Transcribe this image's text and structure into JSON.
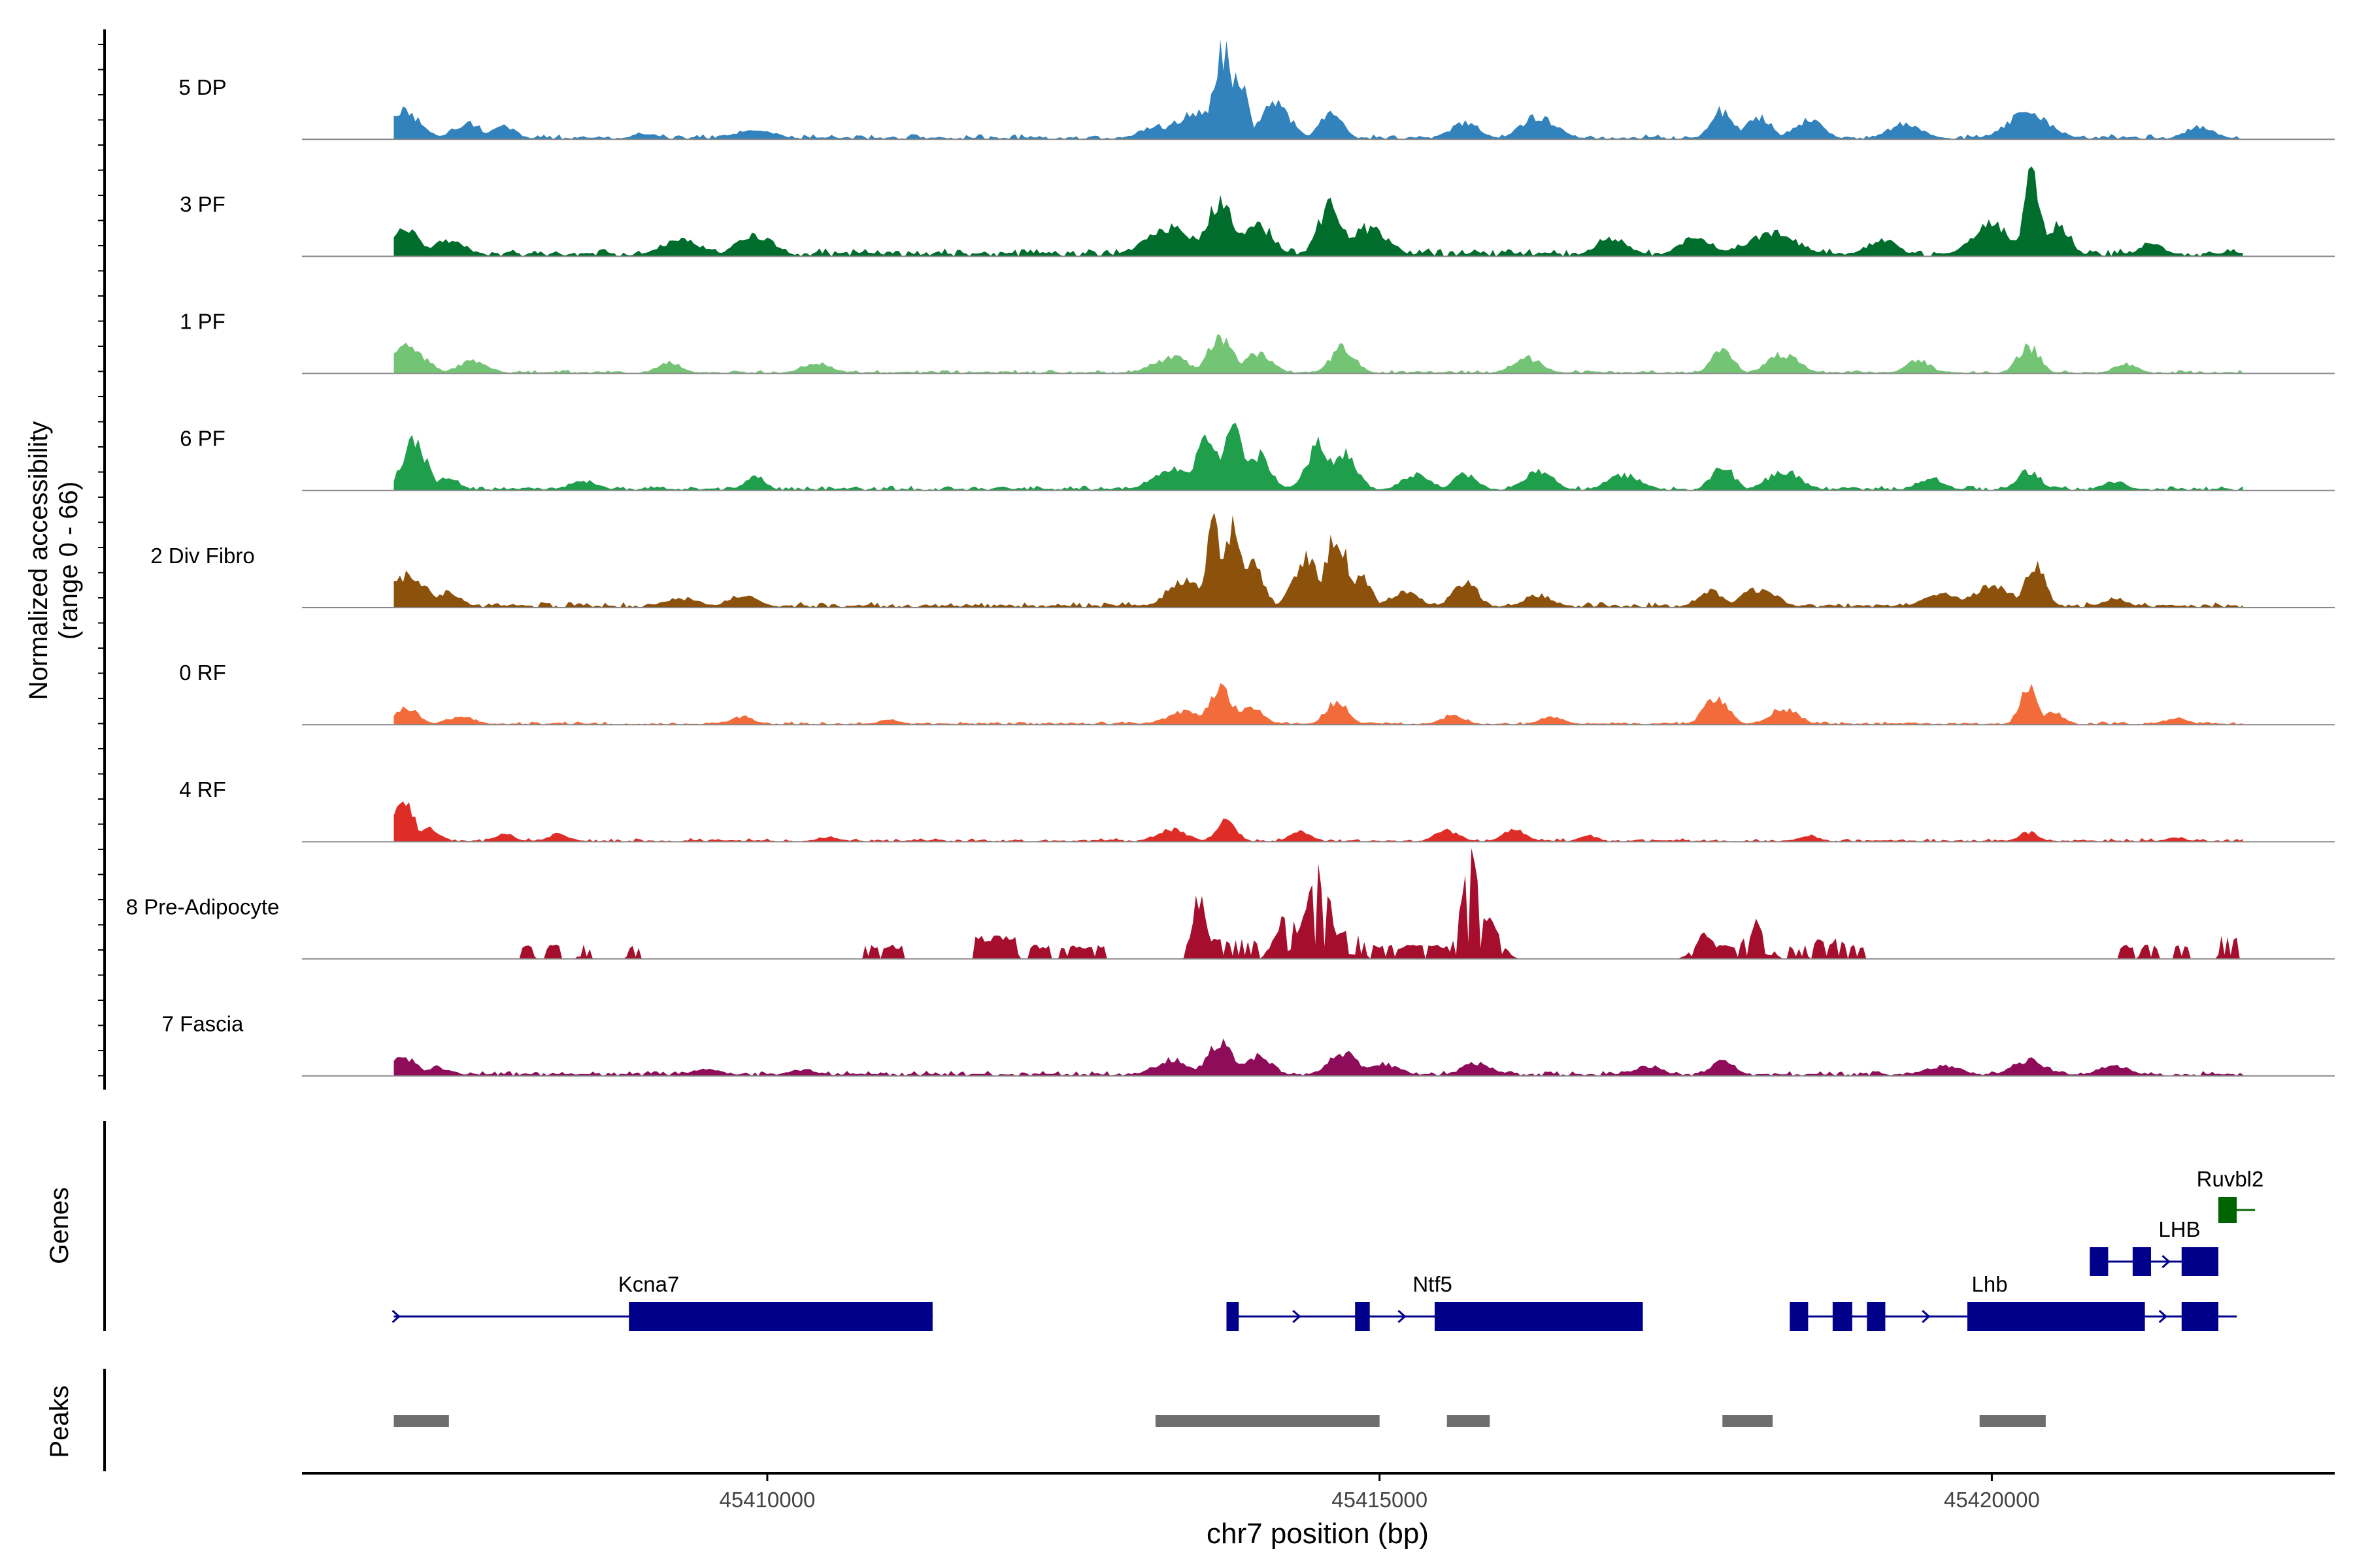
{
  "chart_data": {
    "type": "area",
    "title": "",
    "ylabel_lines": [
      "Normalized accessibility",
      "(range 0 - 66)"
    ],
    "xlabel": "chr7 position (bp)",
    "xlim": [
      45406200,
      45422800
    ],
    "x_ticks": [
      45410000,
      45415000,
      45420000
    ],
    "x_tick_labels": [
      "45410000",
      "45415000",
      "45420000"
    ],
    "data_x_range": [
      45406950,
      45422050
    ],
    "y_max": 66,
    "tracks": [
      {
        "name": "5 DP",
        "color": "#3182BD",
        "noise": 2.2,
        "floor": 0.8,
        "peaks": [
          [
            45407020,
            150,
            18
          ],
          [
            45407550,
            120,
            10
          ],
          [
            45407850,
            100,
            8
          ],
          [
            45409000,
            100,
            4
          ],
          [
            45409900,
            160,
            6
          ],
          [
            45413200,
            150,
            8
          ],
          [
            45413500,
            180,
            16
          ],
          [
            45413730,
            90,
            55
          ],
          [
            45413850,
            70,
            38
          ],
          [
            45414150,
            120,
            22
          ],
          [
            45414600,
            90,
            18
          ],
          [
            45415700,
            120,
            10
          ],
          [
            45416300,
            140,
            14
          ],
          [
            45417800,
            90,
            18
          ],
          [
            45418100,
            100,
            14
          ],
          [
            45418500,
            120,
            12
          ],
          [
            45419300,
            140,
            10
          ],
          [
            45420300,
            180,
            16
          ],
          [
            45421700,
            120,
            8
          ]
        ]
      },
      {
        "name": "3 PF",
        "color": "#006D2C",
        "noise": 3.2,
        "floor": 1.5,
        "peaks": [
          [
            45407050,
            120,
            18
          ],
          [
            45407400,
            140,
            10
          ],
          [
            45409300,
            180,
            10
          ],
          [
            45409900,
            140,
            14
          ],
          [
            45413300,
            200,
            18
          ],
          [
            45413700,
            120,
            32
          ],
          [
            45414000,
            130,
            20
          ],
          [
            45414600,
            100,
            32
          ],
          [
            45414900,
            160,
            18
          ],
          [
            45416900,
            130,
            12
          ],
          [
            45417600,
            140,
            12
          ],
          [
            45418200,
            220,
            14
          ],
          [
            45419100,
            130,
            10
          ],
          [
            45420000,
            160,
            20
          ],
          [
            45420330,
            70,
            50
          ],
          [
            45420550,
            90,
            20
          ],
          [
            45421300,
            100,
            8
          ]
        ]
      },
      {
        "name": "1 PF",
        "color": "#74C476",
        "noise": 1.5,
        "floor": 0.6,
        "peaks": [
          [
            45407050,
            150,
            16
          ],
          [
            45407600,
            120,
            8
          ],
          [
            45409200,
            100,
            7
          ],
          [
            45410400,
            120,
            7
          ],
          [
            45413300,
            150,
            10
          ],
          [
            45413700,
            100,
            22
          ],
          [
            45414000,
            120,
            12
          ],
          [
            45414700,
            100,
            16
          ],
          [
            45416200,
            120,
            10
          ],
          [
            45417800,
            90,
            14
          ],
          [
            45418300,
            130,
            12
          ],
          [
            45419400,
            100,
            8
          ],
          [
            45420300,
            90,
            17
          ],
          [
            45421100,
            100,
            6
          ]
        ]
      },
      {
        "name": "6 PF",
        "color": "#1F9E4C",
        "noise": 2.0,
        "floor": 0.8,
        "peaks": [
          [
            45407120,
            100,
            30
          ],
          [
            45407400,
            90,
            8
          ],
          [
            45408500,
            120,
            6
          ],
          [
            45409900,
            80,
            10
          ],
          [
            45413300,
            150,
            14
          ],
          [
            45413600,
            110,
            30
          ],
          [
            45413800,
            90,
            40
          ],
          [
            45414000,
            110,
            22
          ],
          [
            45414500,
            100,
            28
          ],
          [
            45414700,
            110,
            24
          ],
          [
            45415300,
            120,
            10
          ],
          [
            45415700,
            100,
            10
          ],
          [
            45416300,
            120,
            12
          ],
          [
            45417000,
            140,
            10
          ],
          [
            45417800,
            90,
            16
          ],
          [
            45418300,
            140,
            12
          ],
          [
            45419500,
            110,
            8
          ],
          [
            45420300,
            100,
            12
          ],
          [
            45421000,
            100,
            6
          ]
        ]
      },
      {
        "name": "2 Div Fibro",
        "color": "#8C510A",
        "noise": 2.3,
        "floor": 1.0,
        "peaks": [
          [
            45407070,
            140,
            20
          ],
          [
            45407400,
            100,
            10
          ],
          [
            45409300,
            140,
            6
          ],
          [
            45409800,
            120,
            8
          ],
          [
            45413400,
            130,
            18
          ],
          [
            45413650,
            60,
            55
          ],
          [
            45413800,
            80,
            48
          ],
          [
            45413960,
            90,
            26
          ],
          [
            45414400,
            100,
            30
          ],
          [
            45414650,
            90,
            44
          ],
          [
            45414850,
            80,
            20
          ],
          [
            45415200,
            120,
            10
          ],
          [
            45415700,
            100,
            16
          ],
          [
            45416300,
            120,
            8
          ],
          [
            45417700,
            110,
            10
          ],
          [
            45418100,
            140,
            12
          ],
          [
            45419600,
            140,
            10
          ],
          [
            45420000,
            160,
            14
          ],
          [
            45420350,
            80,
            28
          ],
          [
            45421000,
            100,
            6
          ]
        ]
      },
      {
        "name": "0 RF",
        "color": "#F26B3A",
        "noise": 1.4,
        "floor": 0.5,
        "peaks": [
          [
            45407050,
            100,
            10
          ],
          [
            45407500,
            120,
            5
          ],
          [
            45409800,
            100,
            5
          ],
          [
            45411000,
            100,
            3
          ],
          [
            45413400,
            140,
            8
          ],
          [
            45413700,
            100,
            22
          ],
          [
            45413950,
            100,
            12
          ],
          [
            45414650,
            90,
            14
          ],
          [
            45415600,
            100,
            6
          ],
          [
            45416400,
            100,
            5
          ],
          [
            45417750,
            100,
            16
          ],
          [
            45418300,
            120,
            10
          ],
          [
            45420300,
            70,
            24
          ],
          [
            45420500,
            80,
            8
          ],
          [
            45421500,
            100,
            4
          ]
        ]
      },
      {
        "name": "4 RF",
        "color": "#DE2D26",
        "noise": 1.5,
        "floor": 0.6,
        "peaks": [
          [
            45407030,
            80,
            28
          ],
          [
            45407250,
            80,
            8
          ],
          [
            45407850,
            80,
            5
          ],
          [
            45408300,
            90,
            5
          ],
          [
            45410500,
            100,
            3
          ],
          [
            45413300,
            120,
            8
          ],
          [
            45413750,
            80,
            14
          ],
          [
            45414350,
            90,
            6
          ],
          [
            45415550,
            100,
            7
          ],
          [
            45416100,
            90,
            8
          ],
          [
            45416700,
            80,
            4
          ],
          [
            45418500,
            90,
            4
          ],
          [
            45420300,
            80,
            6
          ],
          [
            45421500,
            80,
            3
          ]
        ]
      },
      {
        "name": "8 Pre-Adipocyte",
        "color": "#A50F2D",
        "noise": 2.4,
        "floor": 0.0,
        "dropout": 0.18,
        "sparse": true,
        "peaks": [
          [
            45413530,
            60,
            38
          ],
          [
            45414250,
            90,
            28
          ],
          [
            45414500,
            100,
            52
          ],
          [
            45414700,
            90,
            18
          ],
          [
            45415740,
            70,
            58
          ],
          [
            45415900,
            80,
            28
          ],
          [
            45417650,
            80,
            14
          ],
          [
            45418100,
            70,
            22
          ]
        ],
        "blocks": [
          [
            45408000,
            45408100,
            7
          ],
          [
            45408200,
            45408320,
            7
          ],
          [
            45408450,
            45408550,
            7
          ],
          [
            45408850,
            45408950,
            7
          ],
          [
            45410800,
            45410900,
            7
          ],
          [
            45410950,
            45411100,
            7
          ],
          [
            45411700,
            45412050,
            12
          ],
          [
            45412150,
            45412300,
            7
          ],
          [
            45412400,
            45412750,
            7
          ],
          [
            45413500,
            45414000,
            10
          ],
          [
            45414150,
            45414900,
            12
          ],
          [
            45414950,
            45415350,
            7
          ],
          [
            45415400,
            45415550,
            7
          ],
          [
            45415600,
            45416000,
            12
          ],
          [
            45417600,
            45417900,
            7
          ],
          [
            45417950,
            45418200,
            10
          ],
          [
            45418350,
            45418500,
            7
          ],
          [
            45418550,
            45418800,
            10
          ],
          [
            45418850,
            45418950,
            7
          ],
          [
            45421050,
            45421150,
            7
          ],
          [
            45421200,
            45421350,
            7
          ],
          [
            45421500,
            45421600,
            7
          ],
          [
            45421850,
            45422000,
            12
          ]
        ]
      },
      {
        "name": "7 Fascia",
        "color": "#8E0C59",
        "noise": 2.2,
        "floor": 0.8,
        "peaks": [
          [
            45407030,
            100,
            12
          ],
          [
            45407300,
            100,
            6
          ],
          [
            45409500,
            140,
            4
          ],
          [
            45410300,
            120,
            4
          ],
          [
            45413300,
            140,
            10
          ],
          [
            45413700,
            110,
            20
          ],
          [
            45414000,
            120,
            12
          ],
          [
            45414700,
            120,
            14
          ],
          [
            45415000,
            150,
            8
          ],
          [
            45415800,
            130,
            8
          ],
          [
            45417200,
            120,
            6
          ],
          [
            45417800,
            100,
            10
          ],
          [
            45419600,
            160,
            6
          ],
          [
            45420300,
            140,
            10
          ],
          [
            45421000,
            140,
            6
          ]
        ]
      }
    ],
    "genes": {
      "label": "Genes",
      "color": "#00008B",
      "other_color": "#006400",
      "models": [
        {
          "name": "Kcna7",
          "strand": "+",
          "row": 0,
          "start": 45406950,
          "end": 45411350,
          "label_at": 45409000,
          "exons": [
            [
              45408870,
              45411350
            ]
          ]
        },
        {
          "name": "Ntf5",
          "strand": "+",
          "row": 0,
          "start": 45413750,
          "end": 45417150,
          "label_at": 45415400,
          "exons": [
            [
              45413750,
              45413850
            ],
            [
              45414800,
              45414920
            ],
            [
              45415450,
              45417150
            ]
          ]
        },
        {
          "name": "Lhb",
          "strand": "+",
          "row": 0,
          "start": 45418350,
          "end": 45422000,
          "label_at": 45419950,
          "exons": [
            [
              45418350,
              45418500
            ],
            [
              45418700,
              45418860
            ],
            [
              45418980,
              45419130
            ],
            [
              45419800,
              45421250
            ],
            [
              45421550,
              45421850
            ]
          ]
        },
        {
          "name": "LHB",
          "strand": "+",
          "row": 1,
          "start": 45420800,
          "end": 45421850,
          "label_at": 45421500,
          "exons": [
            [
              45420800,
              45420950
            ],
            [
              45421150,
              45421300
            ],
            [
              45421550,
              45421850
            ]
          ]
        },
        {
          "name": "Ruvbl2",
          "strand": "+",
          "row": 2,
          "start": 45421850,
          "end": 45422150,
          "label_at": 45421850,
          "other": true,
          "exons": [
            [
              45421850,
              45422000
            ]
          ]
        }
      ]
    },
    "peaks_track": {
      "label": "Peaks",
      "color": "#6E6E6E",
      "regions": [
        [
          45406950,
          45407400
        ],
        [
          45413170,
          45415000
        ],
        [
          45415550,
          45415900
        ],
        [
          45417800,
          45418210
        ],
        [
          45419900,
          45420440
        ]
      ]
    }
  }
}
